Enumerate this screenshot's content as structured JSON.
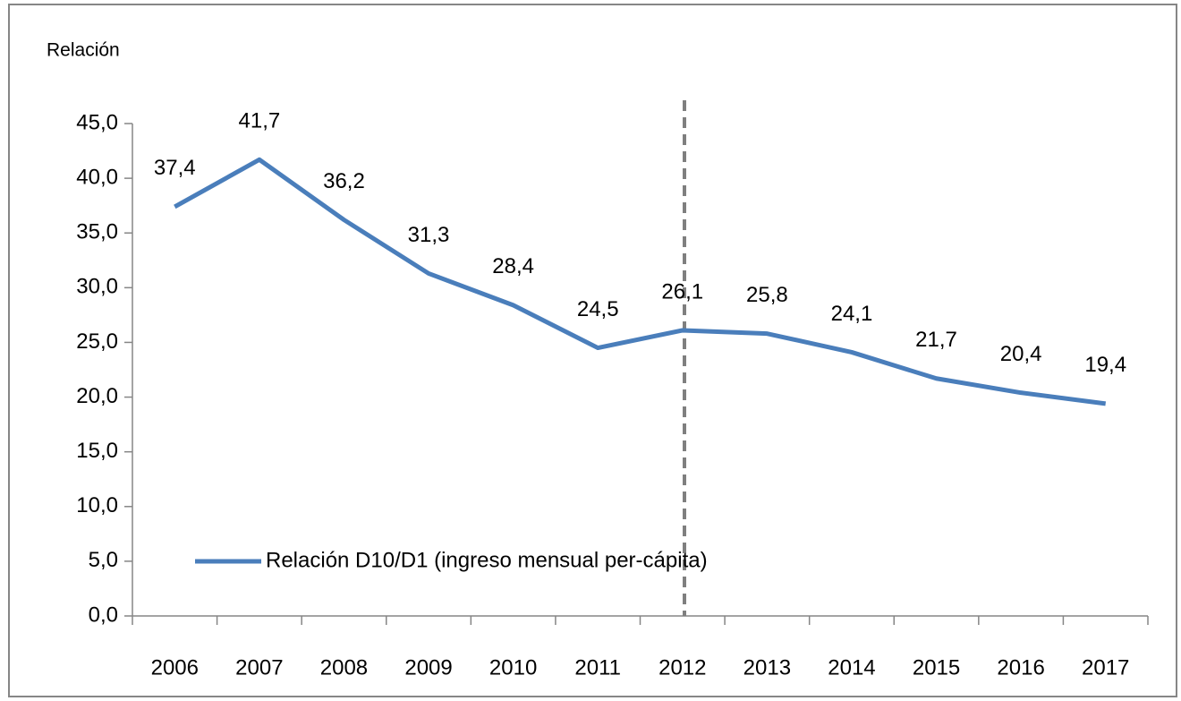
{
  "chart_data": {
    "type": "line",
    "y_axis_label": "Relación",
    "categories": [
      "2006",
      "2007",
      "2008",
      "2009",
      "2010",
      "2011",
      "2012",
      "2013",
      "2014",
      "2015",
      "2016",
      "2017"
    ],
    "series": [
      {
        "name": "Relación D10/D1 (ingreso mensual per-cápita)",
        "color": "#4a7ebb",
        "values": [
          37.4,
          41.7,
          36.2,
          31.3,
          28.4,
          24.5,
          26.1,
          25.8,
          24.1,
          21.7,
          20.4,
          19.4
        ],
        "value_labels": [
          "37,4",
          "41,7",
          "36,2",
          "31,3",
          "28,4",
          "24,5",
          "26,1",
          "25,8",
          "24,1",
          "21,7",
          "20,4",
          "19,4"
        ]
      }
    ],
    "ylim": [
      0,
      45
    ],
    "yticks": [
      {
        "value": 0,
        "label": "0,0"
      },
      {
        "value": 5,
        "label": "5,0"
      },
      {
        "value": 10,
        "label": "10,0"
      },
      {
        "value": 15,
        "label": "15,0"
      },
      {
        "value": 20,
        "label": "20,0"
      },
      {
        "value": 25,
        "label": "25,0"
      },
      {
        "value": 30,
        "label": "30,0"
      },
      {
        "value": 35,
        "label": "35,0"
      },
      {
        "value": 40,
        "label": "40,0"
      },
      {
        "value": 45,
        "label": "45,0"
      }
    ],
    "grid": false
  }
}
